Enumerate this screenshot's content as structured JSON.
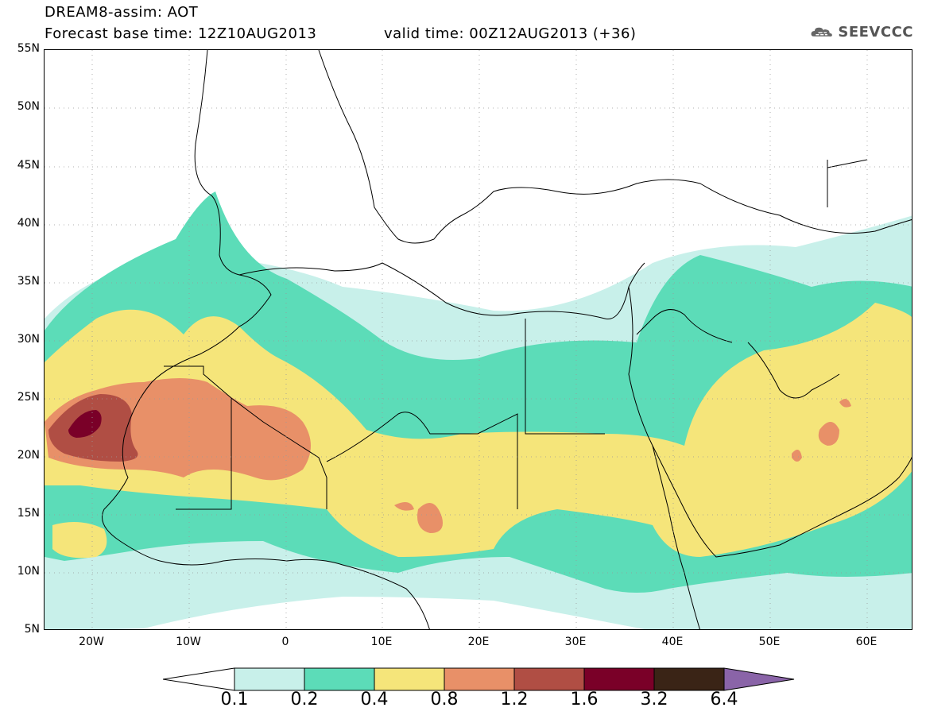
{
  "header": {
    "title_line1": "DREAM8-assim: AOT",
    "title_line2a": "Forecast base time: 12Z10AUG2013",
    "title_line2b": "valid time: 00Z12AUG2013 (+36)",
    "logo_text": "SEEVCCC",
    "logo_icon": "cloud-icon"
  },
  "axes": {
    "latitude_ticks": [
      "55N",
      "50N",
      "45N",
      "40N",
      "35N",
      "30N",
      "25N",
      "20N",
      "15N",
      "10N",
      "5N"
    ],
    "longitude_ticks": [
      "20W",
      "10W",
      "0",
      "10E",
      "20E",
      "30E",
      "40E",
      "50E",
      "60E"
    ]
  },
  "colorbar": {
    "labels": [
      "0.1",
      "0.2",
      "0.4",
      "0.8",
      "1.2",
      "1.6",
      "3.2",
      "6.4"
    ],
    "colors": [
      "#c8f0ea",
      "#5cdcb8",
      "#f5e57a",
      "#e89068",
      "#b04e44",
      "#7a0028",
      "#3a2416",
      "#8a64a8"
    ]
  },
  "map_colors": {
    "ocean_land_background": "#ffffff",
    "borders": "#000000"
  }
}
